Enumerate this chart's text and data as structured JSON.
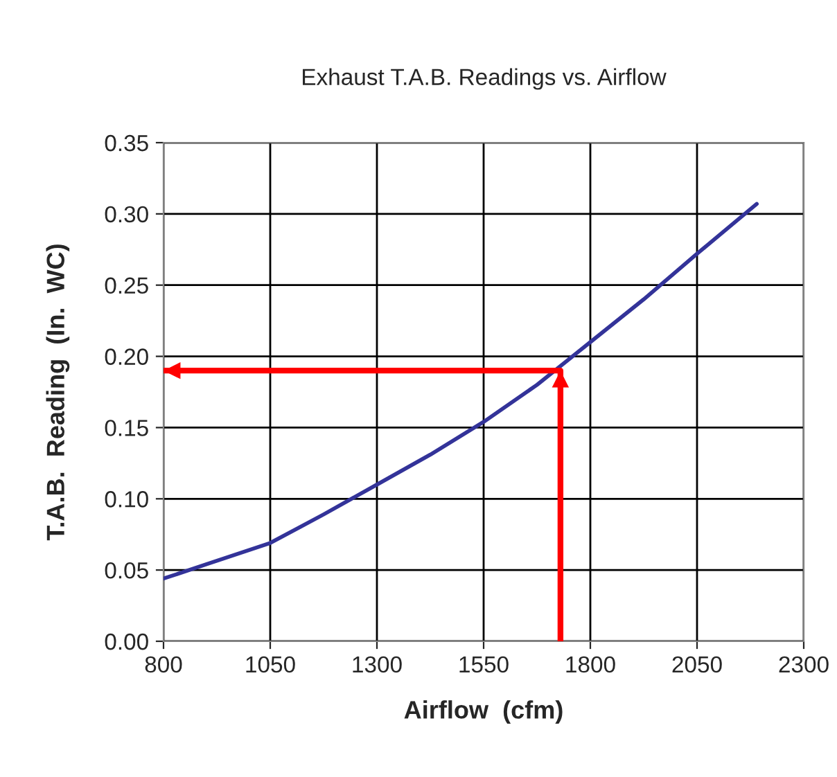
{
  "chart_data": {
    "type": "line",
    "title": "Exhaust T.A.B. Readings vs. Airflow",
    "xlabel": "Airflow  (cfm)",
    "ylabel": "T.A.B.  Reading  (In.  WC)",
    "series": [
      {
        "color": "#333399",
        "x": [
          800,
          900,
          1050,
          1175,
          1300,
          1425,
          1550,
          1675,
          1800,
          1925,
          2050,
          2190
        ],
        "values": [
          0.044,
          0.054,
          0.069,
          0.089,
          0.11,
          0.131,
          0.154,
          0.18,
          0.21,
          0.24,
          0.272,
          0.307
        ]
      },
      {
        "color": "#ff0000",
        "x": [
          1730,
          1730,
          800
        ],
        "values": [
          0.0,
          0.19,
          0.19
        ]
      }
    ],
    "xlim": [
      800,
      2300
    ],
    "xticks": [
      800,
      1050,
      1300,
      1550,
      1800,
      2050,
      2300
    ],
    "ylim": [
      0,
      0.35
    ],
    "yticks": [
      {
        "value": 0,
        "label": "0.00"
      },
      {
        "value": 0.05,
        "label": "0.05"
      },
      {
        "value": 0.1,
        "label": "0.10"
      },
      {
        "value": 0.15,
        "label": "0.15"
      },
      {
        "value": 0.2,
        "label": "0.20"
      },
      {
        "value": 0.25,
        "label": "0.25"
      },
      {
        "value": 0.3,
        "label": "0.30"
      },
      {
        "value": 0.35,
        "label": "0.35"
      }
    ],
    "grid": true
  }
}
